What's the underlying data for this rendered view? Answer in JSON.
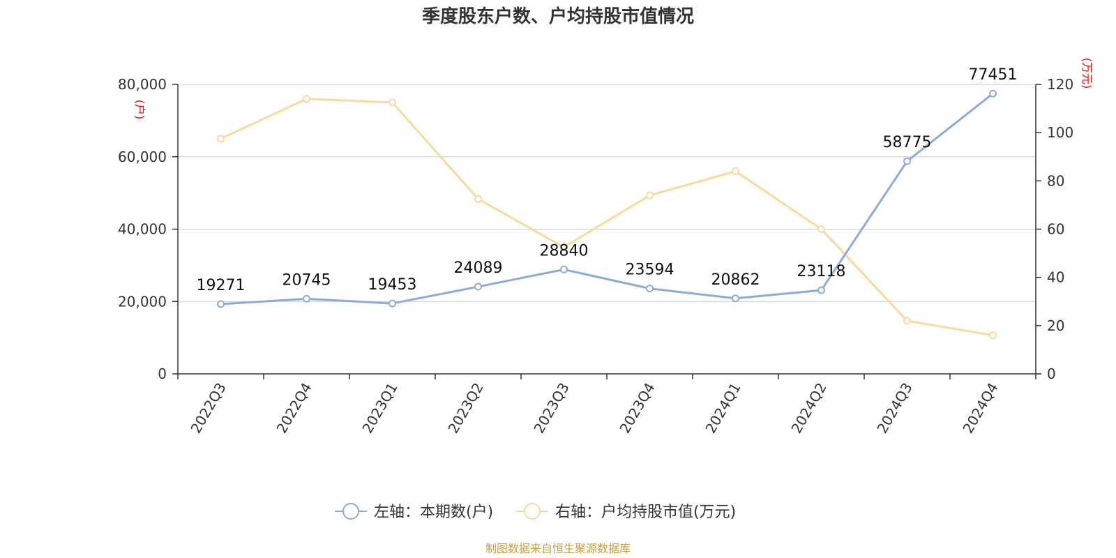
{
  "chart_data": {
    "type": "line",
    "title": "季度股东户数、户均持股市值情况",
    "categories": [
      "2022Q3",
      "2022Q4",
      "2023Q1",
      "2023Q2",
      "2023Q3",
      "2023Q4",
      "2024Q1",
      "2024Q2",
      "2024Q3",
      "2024Q4"
    ],
    "left_axis": {
      "unit": "(户)",
      "ylim": [
        0,
        80000
      ],
      "ticks": [
        "0",
        "20,000",
        "40,000",
        "60,000",
        "80,000"
      ],
      "tick_values": [
        0,
        20000,
        40000,
        60000,
        80000
      ]
    },
    "right_axis": {
      "unit": "(万元)",
      "ylim": [
        0,
        120
      ],
      "ticks": [
        "0",
        "20",
        "40",
        "60",
        "80",
        "100",
        "120"
      ],
      "tick_values": [
        0,
        20,
        40,
        60,
        80,
        100,
        120
      ]
    },
    "series": [
      {
        "name": "左轴：本期数(户)",
        "axis": "left",
        "color": "#8eaadb",
        "values": [
          19271,
          20745,
          19453,
          24089,
          28840,
          23594,
          20862,
          23118,
          58775,
          77451
        ],
        "labels": [
          "19271",
          "20745",
          "19453",
          "24089",
          "28840",
          "23594",
          "20862",
          "23118",
          "58775",
          "77451"
        ]
      },
      {
        "name": "右轴：户均持股市值(万元)",
        "axis": "right",
        "color": "#fbd99b",
        "values": [
          97.5,
          114,
          112.5,
          72.5,
          52.5,
          74,
          84,
          60,
          22,
          16
        ]
      }
    ],
    "grid": true,
    "legend": "bottom"
  },
  "source": "制图数据来自恒生聚源数据库"
}
